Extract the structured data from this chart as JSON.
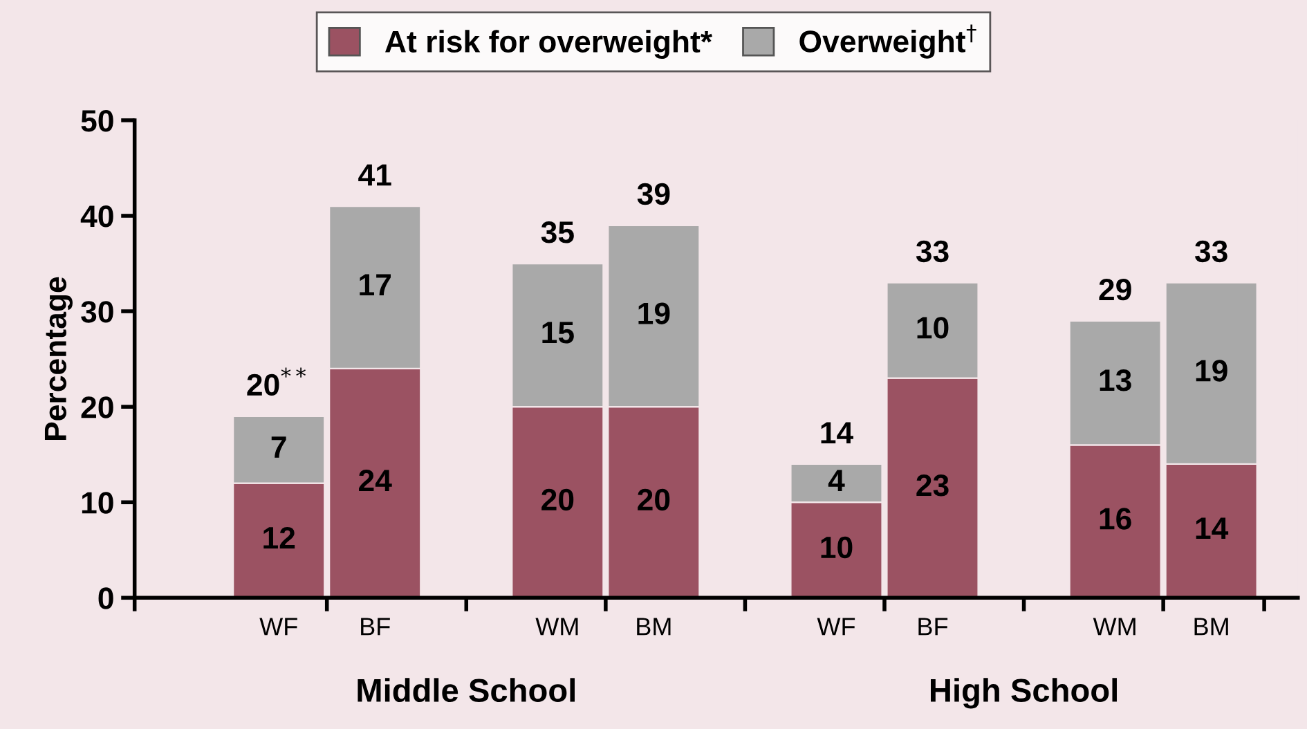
{
  "chart_data": {
    "type": "bar",
    "stacked": true,
    "ylabel": "Percentage",
    "categories": [
      "WF",
      "BF",
      "WM",
      "BM",
      "WF",
      "BF",
      "WM",
      "BM"
    ],
    "series": [
      {
        "name": "At risk for overweight*",
        "color": "#9b5262",
        "values": [
          12,
          24,
          20,
          20,
          10,
          23,
          16,
          14
        ]
      },
      {
        "name": "Overweight$^{†}$",
        "color": "#a9a9a9",
        "values": [
          7,
          17,
          15,
          19,
          4,
          10,
          13,
          19
        ]
      }
    ],
    "totals": [
      "20$^{**}$",
      "41",
      "35",
      "39",
      "14",
      "33",
      "29",
      "33"
    ],
    "data_labels": true,
    "annotations": [
      "Middle School",
      "High School"
    ],
    "ylim": [
      0,
      50
    ],
    "yticks": [
      0,
      10,
      20,
      30,
      40,
      50
    ],
    "grid": false,
    "legend": "top"
  }
}
